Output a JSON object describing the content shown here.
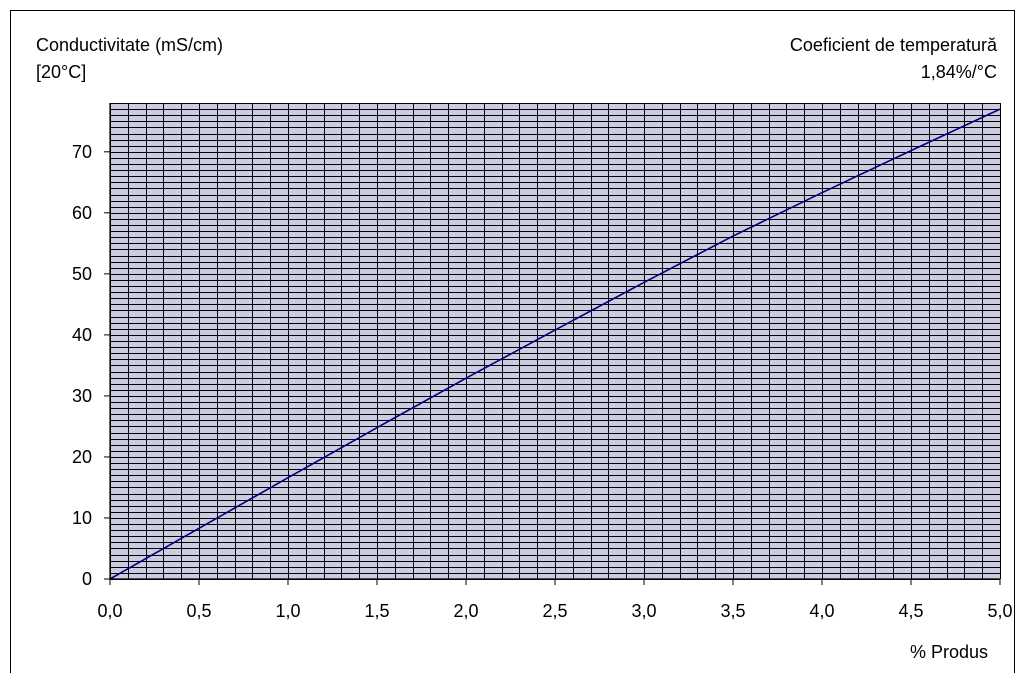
{
  "chart_data": {
    "type": "line",
    "ylabel_line1": "Conductivitate (mS/cm)",
    "ylabel_line2": "[20°C]",
    "annotation_line1": "Coeficient de temperatură",
    "annotation_line2": "1,84%/°C",
    "xlabel": "% Produs",
    "xlim": [
      0,
      5
    ],
    "ylim": [
      0,
      78
    ],
    "x_ticks": [
      0,
      0.5,
      1.0,
      1.5,
      2.0,
      2.5,
      3.0,
      3.5,
      4.0,
      4.5,
      5.0
    ],
    "x_tick_labels": [
      "0,0",
      "0,5",
      "1,0",
      "1,5",
      "2,0",
      "2,5",
      "3,0",
      "3,5",
      "4,0",
      "4,5",
      "5,0"
    ],
    "y_ticks": [
      0,
      10,
      20,
      30,
      40,
      50,
      60,
      70
    ],
    "y_tick_labels": [
      "0",
      "10",
      "20",
      "30",
      "40",
      "50",
      "60",
      "70"
    ],
    "grid": true,
    "grid_minor_x_step": 0.1,
    "grid_minor_y_step": 1,
    "series": [
      {
        "x": [
          0,
          0.5,
          1.0,
          1.5,
          2.0,
          2.5,
          3.0,
          3.5,
          4.0,
          4.5,
          5.0
        ],
        "y": [
          0,
          8.3,
          16.6,
          24.8,
          32.9,
          40.8,
          48.6,
          56.2,
          63.3,
          70.2,
          77.0
        ],
        "color": "#000080"
      }
    ],
    "colors": {
      "plot_background": "#cccce0",
      "grid": "#000000",
      "line": "#000080",
      "frame": "#000000"
    }
  }
}
